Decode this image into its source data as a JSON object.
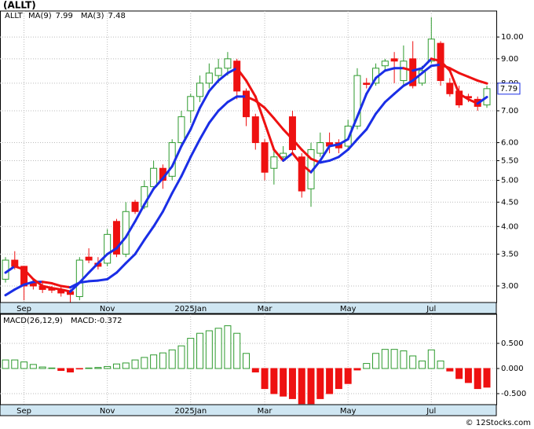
{
  "chart_data": [
    {
      "type": "candlestick",
      "title": "(ALLT)",
      "symbol": "ALLT",
      "footer": "© 12Stocks.com",
      "categories": [
        null,
        null,
        "Sep",
        null,
        null,
        null,
        null,
        null,
        null,
        null,
        null,
        "Nov",
        null,
        null,
        null,
        null,
        null,
        null,
        null,
        null,
        "2025Jan",
        null,
        null,
        null,
        null,
        null,
        null,
        null,
        "Mar",
        null,
        null,
        null,
        null,
        null,
        null,
        null,
        null,
        "May",
        null,
        null,
        null,
        null,
        null,
        null,
        null,
        null,
        "Jul",
        null,
        null,
        null,
        null,
        null,
        null
      ],
      "open": [
        3.1,
        3.4,
        3.3,
        3.05,
        3.0,
        2.97,
        2.95,
        2.92,
        2.85,
        3.45,
        3.35,
        3.35,
        4.1,
        3.5,
        4.5,
        4.4,
        4.85,
        5.3,
        5.1,
        6.0,
        7.0,
        7.5,
        8.0,
        8.3,
        8.6,
        8.9,
        7.7,
        6.8,
        6.0,
        5.3,
        5.6,
        6.8,
        5.6,
        4.8,
        5.7,
        6.0,
        6.0,
        5.9,
        6.5,
        8.0,
        8.0,
        8.7,
        9.0,
        8.1,
        9.0,
        8.0,
        8.9,
        9.7,
        8.0,
        7.7,
        7.5,
        7.4,
        7.2
      ],
      "high": [
        3.45,
        3.55,
        3.3,
        3.1,
        3.05,
        3.0,
        3.0,
        2.95,
        3.45,
        3.6,
        3.45,
        3.95,
        4.15,
        4.5,
        4.55,
        5.0,
        5.5,
        5.4,
        6.1,
        7.0,
        7.6,
        8.3,
        8.8,
        9.0,
        9.3,
        9.0,
        7.8,
        6.9,
        6.1,
        5.8,
        5.9,
        7.0,
        5.7,
        6.0,
        6.3,
        6.3,
        6.1,
        6.7,
        8.6,
        8.2,
        8.8,
        9.0,
        9.3,
        9.6,
        9.8,
        8.7,
        11.0,
        9.8,
        8.2,
        7.9,
        7.6,
        7.5,
        7.9
      ],
      "low": [
        3.05,
        3.25,
        2.8,
        2.95,
        2.9,
        2.9,
        2.85,
        2.75,
        2.8,
        3.35,
        3.25,
        3.3,
        3.45,
        3.45,
        4.25,
        4.35,
        4.8,
        4.8,
        5.0,
        5.9,
        6.6,
        7.3,
        7.8,
        8.0,
        8.3,
        7.4,
        6.5,
        5.8,
        5.0,
        4.9,
        5.5,
        5.7,
        4.6,
        4.4,
        5.6,
        5.7,
        5.7,
        5.8,
        6.4,
        7.8,
        7.9,
        8.5,
        8.0,
        7.9,
        7.8,
        7.9,
        8.8,
        7.9,
        7.5,
        7.1,
        7.3,
        7.0,
        7.1
      ],
      "close": [
        3.4,
        3.3,
        3.0,
        3.0,
        2.95,
        2.94,
        2.9,
        2.88,
        3.4,
        3.4,
        3.3,
        3.85,
        3.5,
        4.3,
        4.3,
        4.85,
        5.3,
        5.0,
        6.0,
        6.8,
        7.5,
        8.0,
        8.4,
        8.6,
        9.0,
        7.7,
        6.8,
        6.0,
        5.2,
        5.6,
        5.7,
        5.8,
        4.75,
        5.8,
        6.0,
        5.9,
        5.85,
        6.5,
        8.3,
        7.95,
        8.6,
        8.9,
        8.9,
        8.9,
        7.9,
        8.5,
        9.9,
        8.1,
        7.6,
        7.2,
        7.45,
        7.15,
        7.79
      ],
      "up_color": "#2e9a2e",
      "down_color": "#ee1111",
      "series": [
        {
          "name": "MA(9)",
          "values": [
            2.87,
            2.95,
            3.02,
            3.06,
            3.06,
            3.04,
            3.0,
            2.98,
            3.05,
            3.07,
            3.08,
            3.1,
            3.2,
            3.35,
            3.5,
            3.75,
            4.0,
            4.3,
            4.7,
            5.1,
            5.6,
            6.1,
            6.6,
            7.0,
            7.3,
            7.5,
            7.5,
            7.35,
            7.1,
            6.75,
            6.4,
            6.1,
            5.8,
            5.55,
            5.45,
            5.5,
            5.6,
            5.8,
            6.1,
            6.4,
            6.9,
            7.3,
            7.6,
            7.9,
            8.1,
            8.4,
            8.7,
            8.75,
            8.6,
            8.4,
            8.25,
            8.1,
            7.99
          ]
        },
        {
          "name": "MA(3)",
          "values": [
            3.2,
            3.3,
            3.25,
            3.1,
            3.0,
            2.97,
            2.95,
            2.92,
            3.05,
            3.2,
            3.35,
            3.5,
            3.6,
            3.8,
            4.1,
            4.45,
            4.8,
            5.05,
            5.35,
            5.9,
            6.4,
            7.1,
            7.7,
            8.1,
            8.4,
            8.6,
            8.1,
            7.5,
            6.6,
            5.8,
            5.5,
            5.7,
            5.4,
            5.2,
            5.5,
            5.9,
            5.95,
            6.1,
            6.8,
            7.6,
            8.2,
            8.5,
            8.6,
            8.6,
            8.5,
            8.6,
            9.0,
            8.9,
            8.5,
            7.6,
            7.4,
            7.25,
            7.48
          ]
        }
      ],
      "line_up_color": "#1a2ee6",
      "line_down_color": "#ee1111",
      "log_scale": true,
      "ylim": [
        2.77,
        11.34
      ],
      "yticks": [
        {
          "value": 3,
          "label": "3.00"
        },
        {
          "value": 3.5,
          "label": "3.50"
        },
        {
          "value": 4,
          "label": "4.00"
        },
        {
          "value": 4.5,
          "label": "4.50"
        },
        {
          "value": 5,
          "label": "5.00"
        },
        {
          "value": 5.5,
          "label": "5.50"
        },
        {
          "value": 6,
          "label": "6.00"
        },
        {
          "value": 7,
          "label": "7.00"
        },
        {
          "value": 8,
          "label": "8.00"
        },
        {
          "value": 9,
          "label": "9.00"
        },
        {
          "value": 10,
          "label": "10.00"
        }
      ],
      "grid": true
    },
    {
      "type": "bar",
      "title": "MACD(26,12,9)",
      "value_name": "MACD:",
      "categories": [
        null,
        null,
        "Sep",
        null,
        null,
        null,
        null,
        null,
        null,
        null,
        null,
        "Nov",
        null,
        null,
        null,
        null,
        null,
        null,
        null,
        null,
        "2025Jan",
        null,
        null,
        null,
        null,
        null,
        null,
        null,
        "Mar",
        null,
        null,
        null,
        null,
        null,
        null,
        null,
        null,
        "May",
        null,
        null,
        null,
        null,
        null,
        null,
        null,
        null,
        "Jul",
        null,
        null,
        null,
        null,
        null,
        null
      ],
      "values": [
        0.17,
        0.17,
        0.13,
        0.08,
        0.03,
        0.01,
        -0.04,
        -0.07,
        -0.01,
        0.01,
        0.02,
        0.04,
        0.09,
        0.11,
        0.17,
        0.22,
        0.27,
        0.31,
        0.37,
        0.45,
        0.6,
        0.7,
        0.75,
        0.8,
        0.85,
        0.7,
        0.3,
        -0.07,
        -0.4,
        -0.5,
        -0.55,
        -0.6,
        -0.7,
        -0.7,
        -0.6,
        -0.5,
        -0.4,
        -0.3,
        -0.03,
        0.1,
        0.3,
        0.38,
        0.38,
        0.35,
        0.25,
        0.15,
        0.37,
        0.15,
        -0.05,
        -0.2,
        -0.28,
        -0.4,
        -0.372
      ],
      "up_color": "#2e9a2e",
      "down_color": "#ee1111",
      "ylim": [
        -0.719,
        1.078
      ],
      "yticks": [
        {
          "value": -0.5,
          "label": "-0.500"
        },
        {
          "value": 0,
          "label": "0.000"
        },
        {
          "value": 0.5,
          "label": "0.500"
        }
      ],
      "grid": true
    }
  ]
}
